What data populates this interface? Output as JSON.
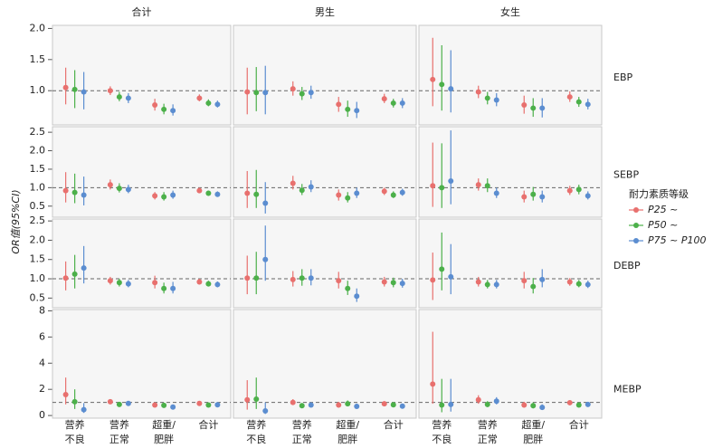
{
  "chart_data": {
    "type": "errorbar",
    "ylabel": "OR值(95%CI)",
    "legend_title": "耐力素质等级",
    "columns": [
      "合计",
      "男生",
      "女生"
    ],
    "categories": [
      [
        "营养",
        "不良"
      ],
      [
        "营养",
        "正常"
      ],
      [
        "超重/",
        "肥胖"
      ],
      [
        "合计"
      ]
    ],
    "series": [
      {
        "name": "P25 ~",
        "color": "#e8706e"
      },
      {
        "name": "P50 ~",
        "color": "#4cb04a"
      },
      {
        "name": "P75 ~ P100",
        "color": "#5b8dd0"
      }
    ],
    "refline": 1,
    "rows": [
      {
        "label": "EBP",
        "ylim": [
          0.45,
          2.05
        ],
        "yticks": [
          {
            "value": 1,
            "label": "1.0"
          },
          1.5,
          {
            "value": 2,
            "label": "2.0"
          }
        ],
        "panels": [
          {
            "series": [
              {
                "values": [
                  1.05,
                  1.0,
                  0.77,
                  0.88
                ],
                "lower": [
                  0.78,
                  0.93,
                  0.68,
                  0.83
                ],
                "upper": [
                  1.37,
                  1.07,
                  0.87,
                  0.94
                ]
              },
              {
                "values": [
                  1.02,
                  0.9,
                  0.7,
                  0.8
                ],
                "lower": [
                  0.72,
                  0.83,
                  0.62,
                  0.75
                ],
                "upper": [
                  1.33,
                  0.98,
                  0.79,
                  0.86
                ]
              },
              {
                "values": [
                  0.98,
                  0.88,
                  0.68,
                  0.78
                ],
                "lower": [
                  0.7,
                  0.8,
                  0.6,
                  0.73
                ],
                "upper": [
                  1.3,
                  0.96,
                  0.78,
                  0.84
                ]
              }
            ]
          },
          {
            "series": [
              {
                "values": [
                  0.98,
                  1.03,
                  0.78,
                  0.87
                ],
                "lower": [
                  0.62,
                  0.92,
                  0.66,
                  0.8
                ],
                "upper": [
                  1.37,
                  1.15,
                  0.9,
                  0.95
                ]
              },
              {
                "values": [
                  0.97,
                  0.95,
                  0.7,
                  0.8
                ],
                "lower": [
                  0.67,
                  0.85,
                  0.58,
                  0.73
                ],
                "upper": [
                  1.38,
                  1.06,
                  0.84,
                  0.87
                ]
              },
              {
                "values": [
                  0.97,
                  0.97,
                  0.68,
                  0.8
                ],
                "lower": [
                  0.62,
                  0.87,
                  0.56,
                  0.72
                ],
                "upper": [
                  1.4,
                  1.08,
                  0.82,
                  0.88
                ]
              }
            ]
          },
          {
            "series": [
              {
                "values": [
                  1.18,
                  0.98,
                  0.77,
                  0.9
                ],
                "lower": [
                  0.75,
                  0.88,
                  0.63,
                  0.82
                ],
                "upper": [
                  1.85,
                  1.08,
                  0.92,
                  0.99
                ]
              },
              {
                "values": [
                  1.1,
                  0.88,
                  0.72,
                  0.82
                ],
                "lower": [
                  0.68,
                  0.78,
                  0.58,
                  0.74
                ],
                "upper": [
                  1.73,
                  0.98,
                  0.88,
                  0.9
                ]
              },
              {
                "values": [
                  1.03,
                  0.85,
                  0.72,
                  0.78
                ],
                "lower": [
                  0.65,
                  0.75,
                  0.57,
                  0.7
                ],
                "upper": [
                  1.65,
                  0.96,
                  0.88,
                  0.87
                ]
              }
            ]
          }
        ]
      },
      {
        "label": "SEBP",
        "ylim": [
          0.2,
          2.65
        ],
        "yticks": [
          0.5,
          {
            "value": 1,
            "label": "1.0"
          },
          1.5,
          {
            "value": 2,
            "label": "2.0"
          },
          2.5
        ],
        "panels": [
          {
            "series": [
              {
                "values": [
                  0.92,
                  1.08,
                  0.78,
                  0.92
                ],
                "lower": [
                  0.6,
                  0.95,
                  0.68,
                  0.85
                ],
                "upper": [
                  1.42,
                  1.22,
                  0.88,
                  1.0
                ]
              },
              {
                "values": [
                  0.87,
                  0.98,
                  0.75,
                  0.85
                ],
                "lower": [
                  0.58,
                  0.87,
                  0.65,
                  0.78
                ],
                "upper": [
                  1.38,
                  1.12,
                  0.88,
                  0.92
                ]
              },
              {
                "values": [
                  0.8,
                  0.95,
                  0.8,
                  0.82
                ],
                "lower": [
                  0.52,
                  0.85,
                  0.7,
                  0.76
                ],
                "upper": [
                  1.3,
                  1.08,
                  0.92,
                  0.9
                ]
              }
            ]
          },
          {
            "series": [
              {
                "values": [
                  0.85,
                  1.12,
                  0.8,
                  0.9
                ],
                "lower": [
                  0.45,
                  0.95,
                  0.65,
                  0.8
                ],
                "upper": [
                  1.45,
                  1.32,
                  0.95,
                  1.0
                ]
              },
              {
                "values": [
                  0.82,
                  0.93,
                  0.72,
                  0.8
                ],
                "lower": [
                  0.45,
                  0.8,
                  0.6,
                  0.72
                ],
                "upper": [
                  1.48,
                  1.1,
                  0.88,
                  0.9
                ]
              },
              {
                "values": [
                  0.58,
                  1.02,
                  0.85,
                  0.87
                ],
                "lower": [
                  0.3,
                  0.88,
                  0.72,
                  0.78
                ],
                "upper": [
                  1.15,
                  1.2,
                  1.0,
                  0.97
                ]
              }
            ]
          },
          {
            "series": [
              {
                "values": [
                  1.05,
                  1.08,
                  0.75,
                  0.92
                ],
                "lower": [
                  0.48,
                  0.92,
                  0.6,
                  0.8
                ],
                "upper": [
                  2.22,
                  1.25,
                  0.92,
                  1.05
                ]
              },
              {
                "values": [
                  1.0,
                  1.05,
                  0.82,
                  0.95
                ],
                "lower": [
                  0.45,
                  0.88,
                  0.65,
                  0.82
                ],
                "upper": [
                  2.2,
                  1.25,
                  1.02,
                  1.08
                ]
              },
              {
                "values": [
                  1.18,
                  0.85,
                  0.75,
                  0.78
                ],
                "lower": [
                  0.55,
                  0.72,
                  0.6,
                  0.68
                ],
                "upper": [
                  2.55,
                  1.0,
                  0.92,
                  0.9
                ]
              }
            ]
          }
        ]
      },
      {
        "label": "DEBP",
        "ylim": [
          0.25,
          2.55
        ],
        "yticks": [
          0.5,
          {
            "value": 1,
            "label": "1.0"
          },
          1.5,
          {
            "value": 2,
            "label": "2.0"
          },
          2.5
        ],
        "panels": [
          {
            "series": [
              {
                "values": [
                  1.02,
                  0.95,
                  0.9,
                  0.92
                ],
                "lower": [
                  0.7,
                  0.85,
                  0.75,
                  0.85
                ],
                "upper": [
                  1.45,
                  1.05,
                  1.08,
                  1.0
                ]
              },
              {
                "values": [
                  1.12,
                  0.9,
                  0.75,
                  0.87
                ],
                "lower": [
                  0.75,
                  0.8,
                  0.62,
                  0.8
                ],
                "upper": [
                  1.62,
                  1.0,
                  0.9,
                  0.95
                ]
              },
              {
                "values": [
                  1.28,
                  0.87,
                  0.75,
                  0.85
                ],
                "lower": [
                  0.88,
                  0.78,
                  0.62,
                  0.78
                ],
                "upper": [
                  1.85,
                  0.97,
                  0.92,
                  0.93
                ]
              }
            ]
          },
          {
            "series": [
              {
                "values": [
                  1.02,
                  0.98,
                  0.95,
                  0.92
                ],
                "lower": [
                  0.6,
                  0.8,
                  0.75,
                  0.8
                ],
                "upper": [
                  1.6,
                  1.2,
                  1.18,
                  1.05
                ]
              },
              {
                "values": [
                  1.02,
                  1.02,
                  0.75,
                  0.9
                ],
                "lower": [
                  0.6,
                  0.82,
                  0.58,
                  0.78
                ],
                "upper": [
                  1.7,
                  1.25,
                  0.95,
                  1.03
                ]
              },
              {
                "values": [
                  1.5,
                  1.02,
                  0.55,
                  0.88
                ],
                "lower": [
                  0.95,
                  0.83,
                  0.4,
                  0.77
                ],
                "upper": [
                  2.38,
                  1.25,
                  0.75,
                  1.0
                ]
              }
            ]
          },
          {
            "series": [
              {
                "values": [
                  0.97,
                  0.92,
                  0.95,
                  0.92
                ],
                "lower": [
                  0.45,
                  0.8,
                  0.75,
                  0.82
                ],
                "upper": [
                  1.68,
                  1.05,
                  1.18,
                  1.02
                ]
              },
              {
                "values": [
                  1.25,
                  0.85,
                  0.8,
                  0.87
                ],
                "lower": [
                  0.7,
                  0.75,
                  0.62,
                  0.78
                ],
                "upper": [
                  2.2,
                  0.97,
                  1.02,
                  0.97
                ]
              },
              {
                "values": [
                  1.05,
                  0.85,
                  0.98,
                  0.85
                ],
                "lower": [
                  0.6,
                  0.75,
                  0.78,
                  0.76
                ],
                "upper": [
                  1.9,
                  0.97,
                  1.25,
                  0.95
                ]
              }
            ]
          }
        ]
      },
      {
        "label": "MEBP",
        "ylim": [
          -0.2,
          8.1
        ],
        "yticks": [
          0,
          2,
          4,
          6,
          8
        ],
        "panels": [
          {
            "series": [
              {
                "values": [
                  1.6,
                  1.05,
                  0.8,
                  0.92
                ],
                "lower": [
                  0.85,
                  0.9,
                  0.65,
                  0.82
                ],
                "upper": [
                  2.9,
                  1.25,
                  0.98,
                  1.02
                ]
              },
              {
                "values": [
                  1.05,
                  0.85,
                  0.78,
                  0.8
                ],
                "lower": [
                  0.5,
                  0.72,
                  0.63,
                  0.72
                ],
                "upper": [
                  2.0,
                  1.0,
                  0.95,
                  0.9
                ]
              },
              {
                "values": [
                  0.45,
                  0.92,
                  0.65,
                  0.82
                ],
                "lower": [
                  0.2,
                  0.78,
                  0.52,
                  0.73
                ],
                "upper": [
                  0.95,
                  1.08,
                  0.8,
                  0.92
                ]
              }
            ]
          },
          {
            "series": [
              {
                "values": [
                  1.2,
                  1.0,
                  0.8,
                  0.9
                ],
                "lower": [
                  0.45,
                  0.8,
                  0.6,
                  0.78
                ],
                "upper": [
                  2.7,
                  1.25,
                  1.05,
                  1.03
                ]
              },
              {
                "values": [
                  1.25,
                  0.75,
                  0.9,
                  0.82
                ],
                "lower": [
                  0.5,
                  0.6,
                  0.7,
                  0.72
                ],
                "upper": [
                  2.9,
                  0.95,
                  1.15,
                  0.95
                ]
              },
              {
                "values": [
                  0.35,
                  0.8,
                  0.7,
                  0.72
                ],
                "lower": [
                  0.12,
                  0.63,
                  0.55,
                  0.63
                ],
                "upper": [
                  1.0,
                  1.0,
                  0.9,
                  0.83
                ]
              }
            ]
          },
          {
            "series": [
              {
                "values": [
                  2.4,
                  1.2,
                  0.8,
                  0.98
                ],
                "lower": [
                  0.9,
                  0.9,
                  0.6,
                  0.85
                ],
                "upper": [
                  6.4,
                  1.55,
                  1.05,
                  1.12
                ]
              },
              {
                "values": [
                  0.8,
                  0.85,
                  0.75,
                  0.8
                ],
                "lower": [
                  0.25,
                  0.65,
                  0.55,
                  0.7
                ],
                "upper": [
                  2.8,
                  1.1,
                  1.0,
                  0.92
                ]
              },
              {
                "values": [
                  0.85,
                  1.1,
                  0.62,
                  0.85
                ],
                "lower": [
                  0.3,
                  0.85,
                  0.45,
                  0.75
                ],
                "upper": [
                  2.8,
                  1.4,
                  0.85,
                  0.97
                ]
              }
            ]
          }
        ]
      }
    ]
  }
}
